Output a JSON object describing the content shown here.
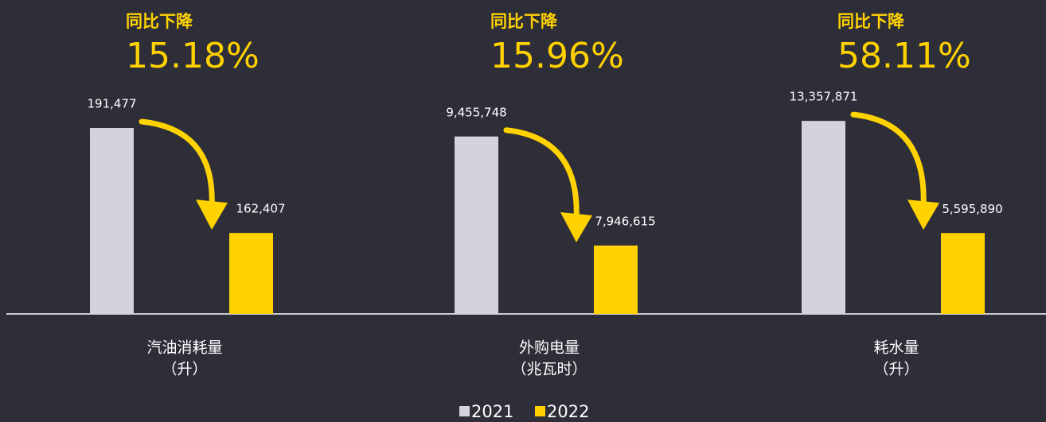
{
  "chart_data": [
    {
      "type": "bar",
      "subtitle": "同比下降",
      "title": "15.18%",
      "xlabel": [
        "汽油消耗量",
        "（升）"
      ],
      "ylim": [
        140000,
        195000
      ],
      "series": [
        {
          "name": "2021",
          "color": "#d3d3db",
          "values": [
            191477
          ],
          "value_labels": [
            "191,477"
          ]
        },
        {
          "name": "2022",
          "color": "#ffd200",
          "values": [
            162407
          ],
          "value_labels": [
            "162,407"
          ]
        }
      ]
    },
    {
      "type": "bar",
      "subtitle": "同比下降",
      "title": "15.96%",
      "xlabel": [
        "外购电量",
        "（兆瓦时）"
      ],
      "ylim": [
        7000000,
        9750000
      ],
      "series": [
        {
          "name": "2021",
          "color": "#d3d3db",
          "values": [
            9455748
          ],
          "value_labels": [
            "9,455,748"
          ]
        },
        {
          "name": "2022",
          "color": "#ffd200",
          "values": [
            7946615
          ],
          "value_labels": [
            "7,946,615"
          ]
        }
      ]
    },
    {
      "type": "bar",
      "subtitle": "同比下降",
      "title": "58.11%",
      "xlabel": [
        "耗水量",
        "（升）"
      ],
      "ylim": [
        0,
        13750000
      ],
      "series": [
        {
          "name": "2021",
          "color": "#d3d3db",
          "values": [
            13357871
          ],
          "value_labels": [
            "13,357,871"
          ]
        },
        {
          "name": "2022",
          "color": "#ffd200",
          "values": [
            5595890
          ],
          "value_labels": [
            "5,595,890"
          ]
        }
      ]
    }
  ]
}
